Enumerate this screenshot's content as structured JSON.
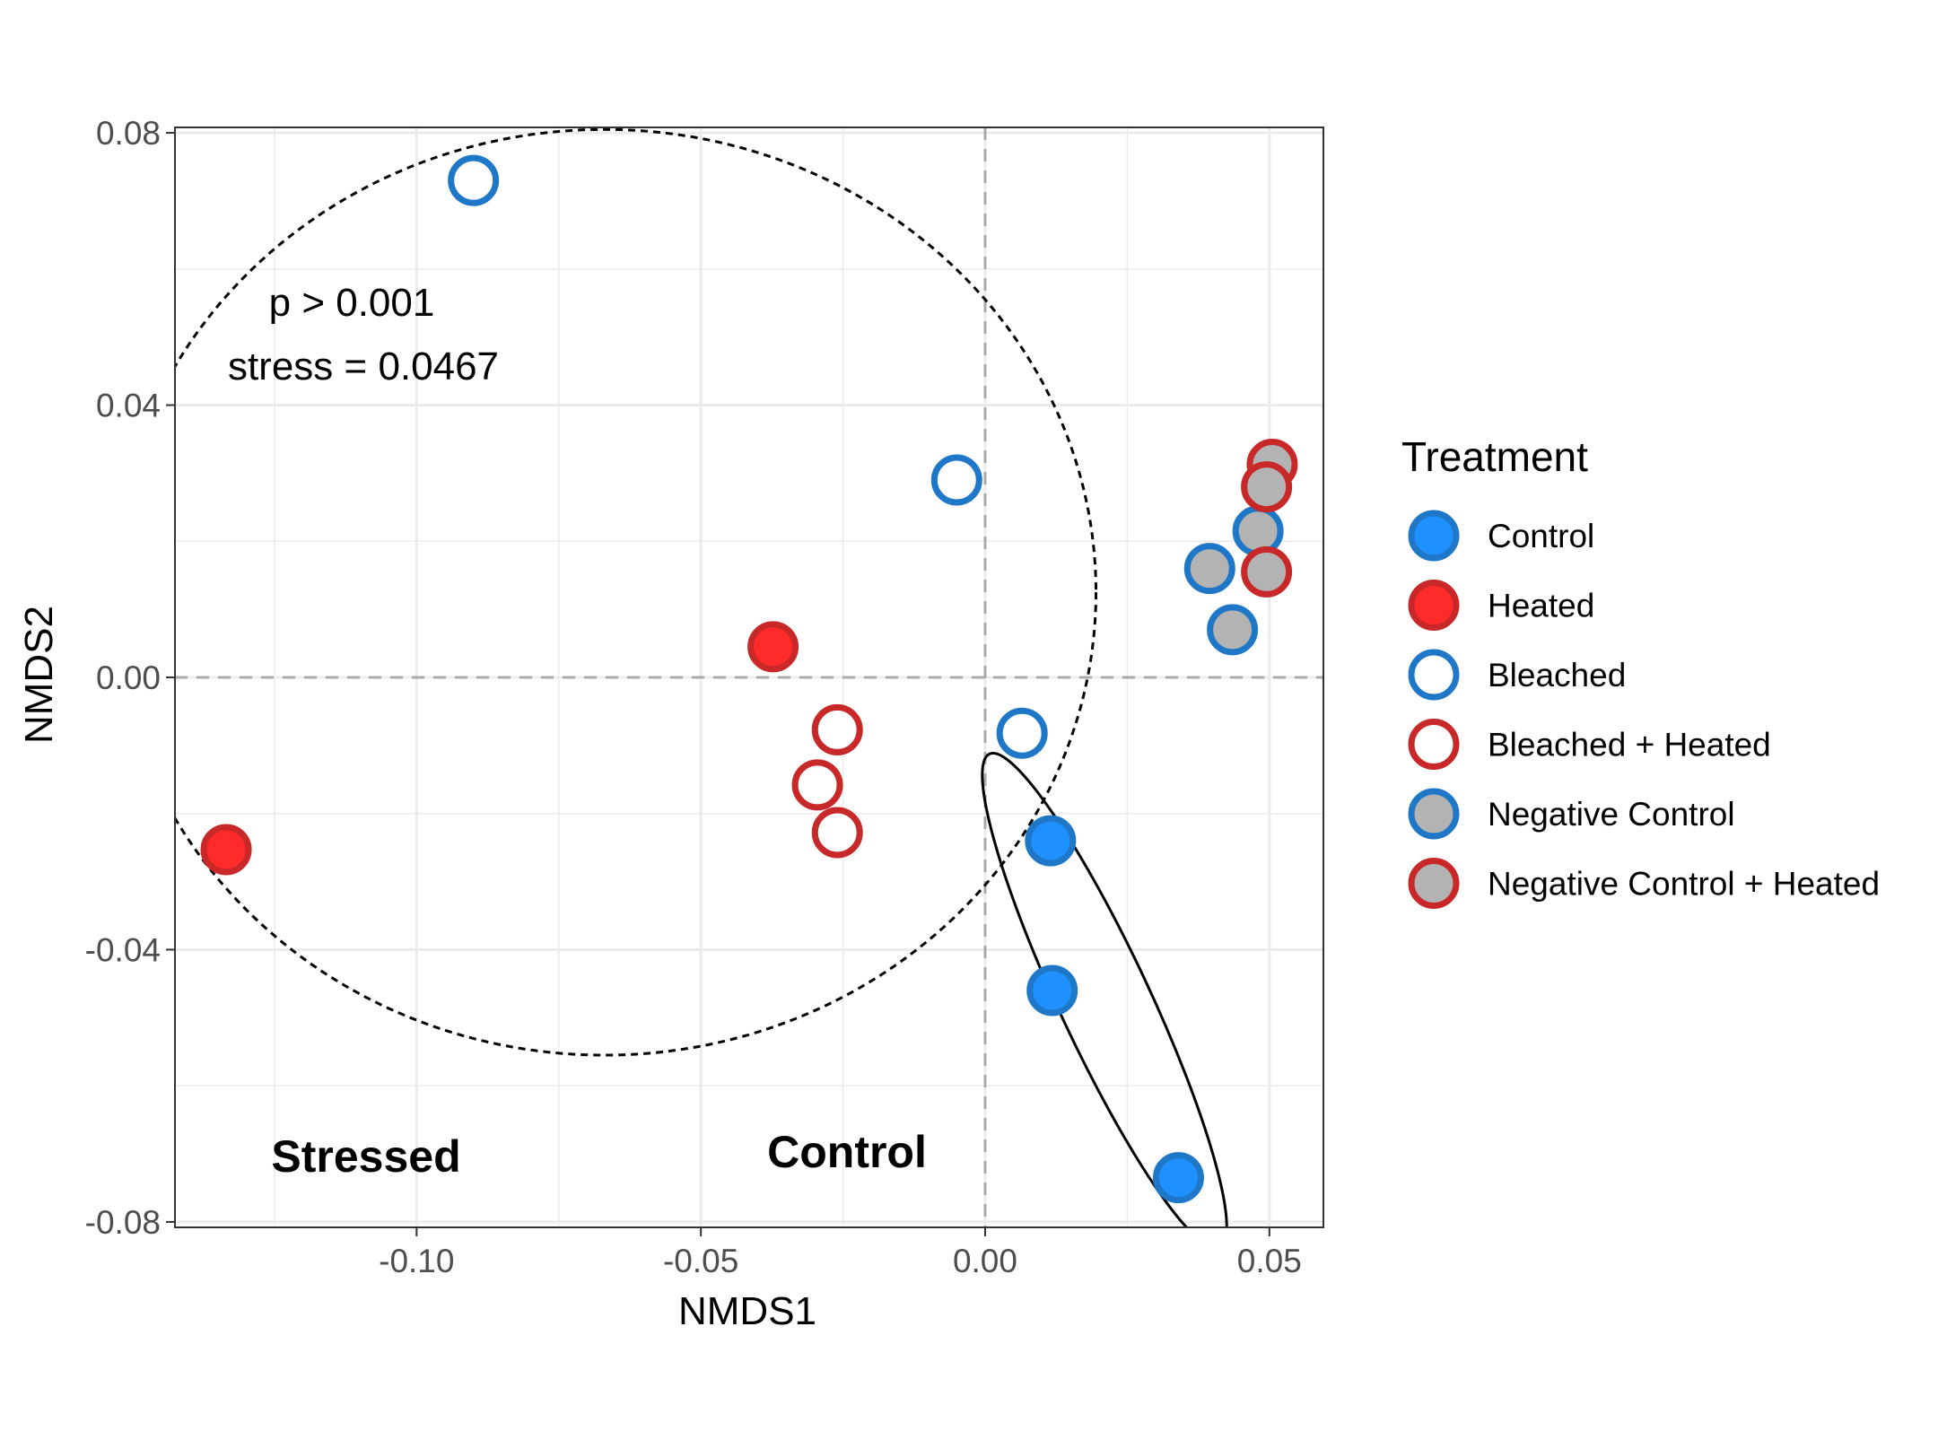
{
  "chart_data": {
    "type": "scatter",
    "xlabel": "NMDS1",
    "ylabel": "NMDS2",
    "xlim": [
      -0.1425,
      0.0595
    ],
    "ylim": [
      -0.0808,
      0.0808
    ],
    "x_ticks": [
      -0.1,
      -0.05,
      0.0,
      0.05
    ],
    "x_tick_labels": [
      "-0.10",
      "-0.05",
      "0.00",
      "0.05"
    ],
    "y_ticks": [
      -0.08,
      -0.04,
      0.0,
      0.04,
      0.08
    ],
    "y_tick_labels": [
      "-0.08",
      "-0.04",
      "0.00",
      "0.04",
      "0.08"
    ],
    "grid": true,
    "reference_lines": {
      "x": 0,
      "y": 0,
      "style": "dashed"
    },
    "annotations": {
      "p_value": "p > 0.001",
      "stress": "stress = 0.0467",
      "group_stressed": "Stressed",
      "group_control": "Control"
    },
    "legend": {
      "title": "Treatment",
      "position": "right"
    },
    "series": [
      {
        "name": "Control",
        "fill": "#1E90FF",
        "stroke": "#1F77C8",
        "points": [
          {
            "x": 0.0115,
            "y": -0.024
          },
          {
            "x": 0.0118,
            "y": -0.046
          },
          {
            "x": 0.034,
            "y": -0.0735
          }
        ]
      },
      {
        "name": "Heated",
        "fill": "#FF2B2B",
        "stroke": "#C82828",
        "points": [
          {
            "x": -0.1335,
            "y": -0.0253
          },
          {
            "x": -0.0373,
            "y": 0.0045
          }
        ]
      },
      {
        "name": "Bleached",
        "fill": "#FFFFFF",
        "stroke": "#1F77C8",
        "points": [
          {
            "x": -0.09,
            "y": 0.073
          },
          {
            "x": -0.005,
            "y": 0.029
          },
          {
            "x": 0.0065,
            "y": -0.0082
          }
        ]
      },
      {
        "name": "Bleached + Heated",
        "fill": "#FFFFFF",
        "stroke": "#C82828",
        "points": [
          {
            "x": -0.026,
            "y": -0.0077
          },
          {
            "x": -0.0295,
            "y": -0.0158
          },
          {
            "x": -0.026,
            "y": -0.0228
          }
        ]
      },
      {
        "name": "Negative Control",
        "fill": "#B3B3B3",
        "stroke": "#1F77C8",
        "points": [
          {
            "x": 0.0395,
            "y": 0.016
          },
          {
            "x": 0.0435,
            "y": 0.007
          },
          {
            "x": 0.048,
            "y": 0.0215
          }
        ]
      },
      {
        "name": "Negative Control + Heated",
        "fill": "#B3B3B3",
        "stroke": "#C82828",
        "points": [
          {
            "x": 0.0505,
            "y": 0.0313
          },
          {
            "x": 0.0495,
            "y": 0.028
          },
          {
            "x": 0.0495,
            "y": 0.0155
          }
        ]
      }
    ],
    "ellipses": [
      {
        "group": "Stressed",
        "style": "dashed",
        "cx": -0.067,
        "cy": 0.0125,
        "rx": 0.0865,
        "ry": 0.068,
        "angle": 0
      },
      {
        "group": "Control",
        "style": "solid",
        "cx": 0.021,
        "cy": -0.0475,
        "rx": 0.008,
        "ry": 0.04,
        "angle": 25
      }
    ]
  }
}
